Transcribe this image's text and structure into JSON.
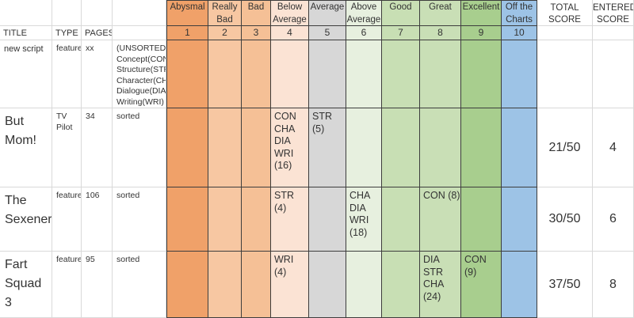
{
  "colors": {
    "abysmal": "#f0a169",
    "really-bad": "#f7c7a2",
    "bad": "#f5c096",
    "below-average": "#fbe3d4",
    "average": "#d7d7d7",
    "above-average": "#e7f0df",
    "good": "#c8dfb4",
    "great": "#c9dfb6",
    "excellent": "#a8ce8e",
    "off-charts": "#9dc3e6",
    "grid-dark": "#3d3d3d",
    "grid-light": "#d9d9d9",
    "ink": "#333333"
  },
  "left_headers": {
    "title": "TITLE",
    "type": "TYPE",
    "pages": "PAGES"
  },
  "score_columns": [
    {
      "id": "abysmal",
      "label": "Abysmal",
      "number": "1"
    },
    {
      "id": "really_bad",
      "label": "Really\nBad",
      "number": "2"
    },
    {
      "id": "bad",
      "label": "Bad",
      "number": "3"
    },
    {
      "id": "below_average",
      "label": "Below\nAverage",
      "number": "4"
    },
    {
      "id": "average",
      "label": "Average",
      "number": "5"
    },
    {
      "id": "above_average",
      "label": "Above\nAverage",
      "number": "6"
    },
    {
      "id": "good",
      "label": "Good",
      "number": "7"
    },
    {
      "id": "great",
      "label": "Great",
      "number": "8"
    },
    {
      "id": "excellent",
      "label": "Excellent",
      "number": "9"
    },
    {
      "id": "off_charts",
      "label": "Off the\nCharts",
      "number": "10"
    }
  ],
  "right_headers": {
    "total": "TOTAL\nSCORE",
    "entered": "ENTERED\nSCORE"
  },
  "rows": [
    {
      "title": "new script",
      "type": "feature",
      "pages": "xx",
      "sort": "(UNSORTED)\nConcept(CON)\nStructure(STR)\nCharacter(CHA)\nDialogue(DIA)\nWriting(WRI)",
      "cells": {},
      "total": "",
      "entered": ""
    },
    {
      "title": "But Mom!",
      "type": "TV Pilot",
      "pages": "34",
      "sort": "sorted",
      "cells": {
        "below_average": "CON\nCHA\nDIA\nWRI\n(16)",
        "average": "STR (5)"
      },
      "total": "21/50",
      "entered": "4"
    },
    {
      "title": "The Sexeners",
      "type": "feature",
      "pages": "106",
      "sort": "sorted",
      "cells": {
        "below_average": "STR (4)",
        "above_average": "CHA\nDIA\nWRI\n(18)",
        "great": "CON (8)"
      },
      "total": "30/50",
      "entered": "6"
    },
    {
      "title": "Fart Squad 3",
      "type": "feature",
      "pages": "95",
      "sort": "sorted",
      "cells": {
        "below_average": "WRI\n(4)",
        "great": "DIA STR\nCHA\n(24)",
        "excellent": "CON (9)"
      },
      "total": "37/50",
      "entered": "8"
    }
  ]
}
